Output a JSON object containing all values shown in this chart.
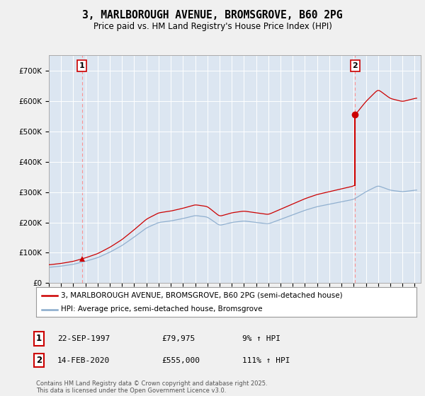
{
  "title": "3, MARLBOROUGH AVENUE, BROMSGROVE, B60 2PG",
  "subtitle": "Price paid vs. HM Land Registry's House Price Index (HPI)",
  "background_color": "#f0f0f0",
  "plot_bg_color": "#dce6f1",
  "sale1_date": "22-SEP-1997",
  "sale1_price": 79975,
  "sale1_year": 1997.708,
  "sale2_date": "14-FEB-2020",
  "sale2_price": 555000,
  "sale2_year": 2020.125,
  "sale1_hpi": "9% ↑ HPI",
  "sale2_hpi": "111% ↑ HPI",
  "legend_house": "3, MARLBOROUGH AVENUE, BROMSGROVE, B60 2PG (semi-detached house)",
  "legend_hpi": "HPI: Average price, semi-detached house, Bromsgrove",
  "footer": "Contains HM Land Registry data © Crown copyright and database right 2025.\nThis data is licensed under the Open Government Licence v3.0.",
  "house_color": "#cc0000",
  "hpi_color": "#88aacc",
  "dashed_color": "#ff8888",
  "ylim": [
    0,
    750000
  ],
  "yticks": [
    0,
    100000,
    200000,
    300000,
    400000,
    500000,
    600000,
    700000
  ],
  "ytick_labels": [
    "£0",
    "£100K",
    "£200K",
    "£300K",
    "£400K",
    "£500K",
    "£600K",
    "£700K"
  ],
  "xlim_start": 1995,
  "xlim_end": 2025.5
}
